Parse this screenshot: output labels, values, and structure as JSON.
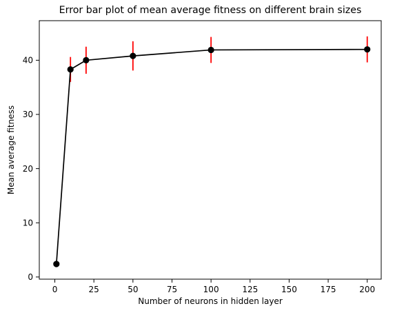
{
  "chart_data": {
    "type": "line",
    "title": "Error bar plot of mean average fitness on different brain sizes",
    "xlabel": "Number of neurons in hidden layer",
    "ylabel": "Mean average fitness",
    "xlim": [
      -9.95,
      208.95
    ],
    "ylim": [
      -0.4,
      47.3
    ],
    "x_ticks": [
      0,
      25,
      50,
      75,
      100,
      125,
      150,
      175,
      200
    ],
    "y_ticks": [
      0,
      10,
      20,
      30,
      40
    ],
    "grid": false,
    "series": [
      {
        "x": [
          1,
          10,
          20,
          50,
          100,
          200
        ],
        "y": [
          2.4,
          38.3,
          40.0,
          40.8,
          41.9,
          42.0
        ],
        "yerr": [
          0.0,
          2.3,
          2.5,
          2.7,
          2.4,
          2.4
        ]
      }
    ],
    "colors": {
      "line": "#000000",
      "marker": "#000000",
      "errorbar": "#ff0000",
      "axes": "#000000"
    }
  }
}
